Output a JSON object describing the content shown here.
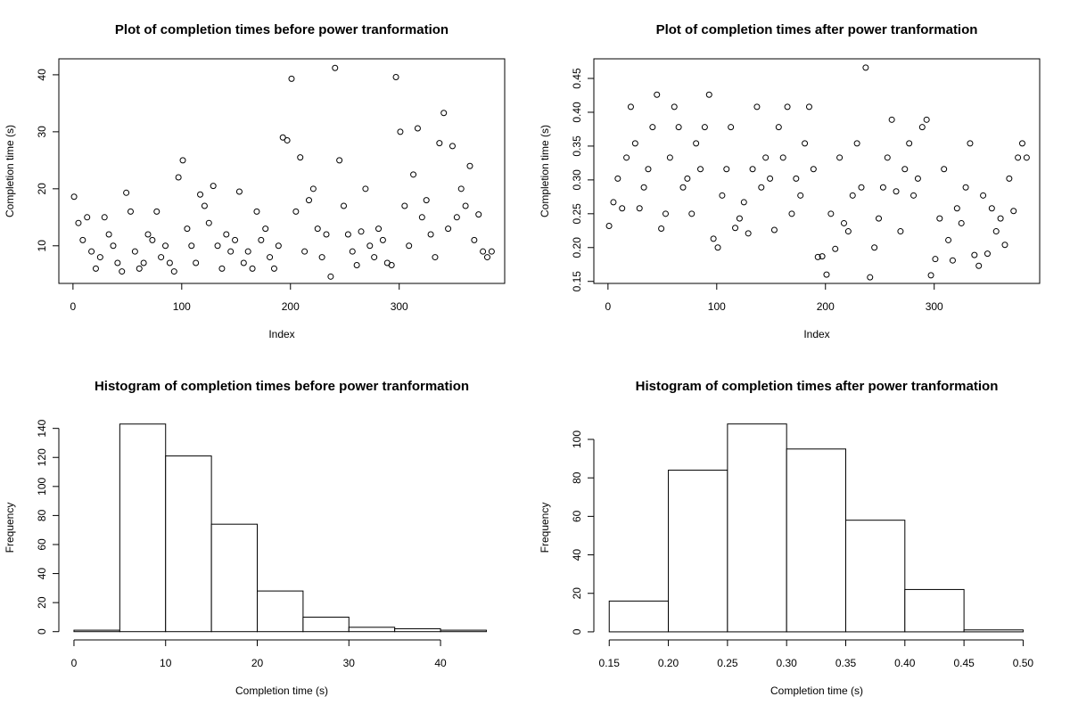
{
  "chart_data": [
    {
      "type": "scatter",
      "title": "Plot of completion times before power tranformation",
      "x_label": "Index",
      "y_label": "Completion time (s)",
      "x": [
        1,
        5,
        9,
        13,
        17,
        21,
        25,
        29,
        33,
        37,
        41,
        45,
        49,
        53,
        57,
        61,
        65,
        69,
        73,
        77,
        81,
        85,
        89,
        93,
        97,
        101,
        105,
        109,
        113,
        117,
        121,
        125,
        129,
        133,
        137,
        141,
        145,
        149,
        153,
        157,
        161,
        165,
        169,
        173,
        177,
        181,
        185,
        189,
        193,
        197,
        201,
        205,
        209,
        213,
        217,
        221,
        225,
        229,
        233,
        237,
        241,
        245,
        249,
        253,
        257,
        261,
        265,
        269,
        273,
        277,
        281,
        285,
        289,
        293,
        297,
        301,
        305,
        309,
        313,
        317,
        321,
        325,
        329,
        333,
        337,
        341,
        345,
        349,
        353,
        357,
        361,
        365,
        369,
        373,
        377,
        381,
        385
      ],
      "values": [
        18.6,
        14,
        11,
        15,
        9,
        6,
        8,
        15,
        12,
        10,
        7,
        5.5,
        19.3,
        16,
        9,
        6,
        7,
        12,
        11,
        16,
        8,
        10,
        7,
        5.5,
        22,
        25,
        13,
        10,
        7,
        19,
        17,
        14,
        20.5,
        10,
        6,
        12,
        9,
        11,
        19.5,
        7,
        9,
        6,
        16,
        11,
        13,
        8,
        6,
        10,
        29,
        28.5,
        39.3,
        16,
        25.5,
        9,
        18,
        20,
        13,
        8,
        12,
        4.6,
        41.2,
        25,
        17,
        12,
        9,
        6.6,
        12.5,
        20,
        10,
        8,
        13,
        11,
        7,
        6.6,
        39.6,
        30,
        17,
        10,
        22.5,
        30.6,
        15,
        18,
        12,
        8,
        28,
        33.3,
        13,
        27.5,
        15,
        20,
        17,
        24,
        11,
        15.5,
        9,
        8,
        9
      ],
      "xlim": [
        -13,
        397
      ],
      "ylim": [
        3.4,
        42.8
      ],
      "xticks": [
        0,
        100,
        200,
        300
      ],
      "yticks": [
        10,
        20,
        30,
        40
      ],
      "color": "#000000"
    },
    {
      "type": "scatter",
      "title": "Plot of completion times after power tranformation",
      "x_label": "Index",
      "y_label": "Completion time (s)",
      "x": [
        1,
        5,
        9,
        13,
        17,
        21,
        25,
        29,
        33,
        37,
        41,
        45,
        49,
        53,
        57,
        61,
        65,
        69,
        73,
        77,
        81,
        85,
        89,
        93,
        97,
        101,
        105,
        109,
        113,
        117,
        121,
        125,
        129,
        133,
        137,
        141,
        145,
        149,
        153,
        157,
        161,
        165,
        169,
        173,
        177,
        181,
        185,
        189,
        193,
        197,
        201,
        205,
        209,
        213,
        217,
        221,
        225,
        229,
        233,
        237,
        241,
        245,
        249,
        253,
        257,
        261,
        265,
        269,
        273,
        277,
        281,
        285,
        289,
        293,
        297,
        301,
        305,
        309,
        313,
        317,
        321,
        325,
        329,
        333,
        337,
        341,
        345,
        349,
        353,
        357,
        361,
        365,
        369,
        373,
        377,
        381,
        385
      ],
      "values": [
        0.232,
        0.267,
        0.302,
        0.258,
        0.333,
        0.408,
        0.354,
        0.258,
        0.289,
        0.316,
        0.378,
        0.426,
        0.228,
        0.25,
        0.333,
        0.408,
        0.378,
        0.289,
        0.302,
        0.25,
        0.354,
        0.316,
        0.378,
        0.426,
        0.213,
        0.2,
        0.277,
        0.316,
        0.378,
        0.229,
        0.243,
        0.267,
        0.221,
        0.316,
        0.408,
        0.289,
        0.333,
        0.302,
        0.226,
        0.378,
        0.333,
        0.408,
        0.25,
        0.302,
        0.277,
        0.354,
        0.408,
        0.316,
        0.186,
        0.187,
        0.16,
        0.25,
        0.198,
        0.333,
        0.236,
        0.224,
        0.277,
        0.354,
        0.289,
        0.466,
        0.156,
        0.2,
        0.243,
        0.289,
        0.333,
        0.389,
        0.283,
        0.224,
        0.316,
        0.354,
        0.277,
        0.302,
        0.378,
        0.389,
        0.159,
        0.183,
        0.243,
        0.316,
        0.211,
        0.181,
        0.258,
        0.236,
        0.289,
        0.354,
        0.189,
        0.173,
        0.277,
        0.191,
        0.258,
        0.224,
        0.243,
        0.204,
        0.302,
        0.254,
        0.333,
        0.354,
        0.333
      ],
      "xlim": [
        -13,
        397
      ],
      "ylim": [
        0.147,
        0.479
      ],
      "xticks": [
        0,
        100,
        200,
        300
      ],
      "yticks": [
        0.15,
        {
          "value": 0.2,
          "label": "0.20"
        },
        0.25,
        {
          "value": 0.3,
          "label": "0.30"
        },
        0.35,
        {
          "value": 0.4,
          "label": "0.40"
        },
        0.45
      ],
      "color": "#000000"
    },
    {
      "type": "histogram",
      "title": "Histogram of completion times before power tranformation",
      "x_label": "Completion time (s)",
      "y_label": "Frequency",
      "bins": [
        0,
        5,
        10,
        15,
        20,
        25,
        30,
        35,
        40,
        45
      ],
      "values": [
        1,
        143,
        121,
        74,
        28,
        10,
        3,
        2,
        1
      ],
      "xlim": [
        -1.65,
        47
      ],
      "ylim": [
        -5.7,
        149
      ],
      "xticks": [
        0,
        10,
        20,
        30,
        40
      ],
      "yticks": [
        0,
        20,
        40,
        60,
        80,
        100,
        120,
        140
      ],
      "color": "#ffffff"
    },
    {
      "type": "histogram",
      "title": "Histogram of completion times after power tranformation",
      "x_label": "Completion time (s)",
      "y_label": "Frequency",
      "bins": [
        0.15,
        0.2,
        0.25,
        0.3,
        0.35,
        0.4,
        0.45,
        0.5
      ],
      "values": [
        16,
        84,
        108,
        95,
        58,
        22,
        1
      ],
      "xlim": [
        0.137,
        0.514
      ],
      "ylim": [
        -4.2,
        112.5
      ],
      "xticks": [
        0.15,
        {
          "value": 0.2,
          "label": "0.20"
        },
        0.25,
        {
          "value": 0.3,
          "label": "0.30"
        },
        0.35,
        {
          "value": 0.4,
          "label": "0.40"
        },
        0.45,
        {
          "value": 0.5,
          "label": "0.50"
        }
      ],
      "yticks": [
        0,
        20,
        40,
        60,
        80,
        100
      ],
      "color": "#ffffff"
    }
  ]
}
